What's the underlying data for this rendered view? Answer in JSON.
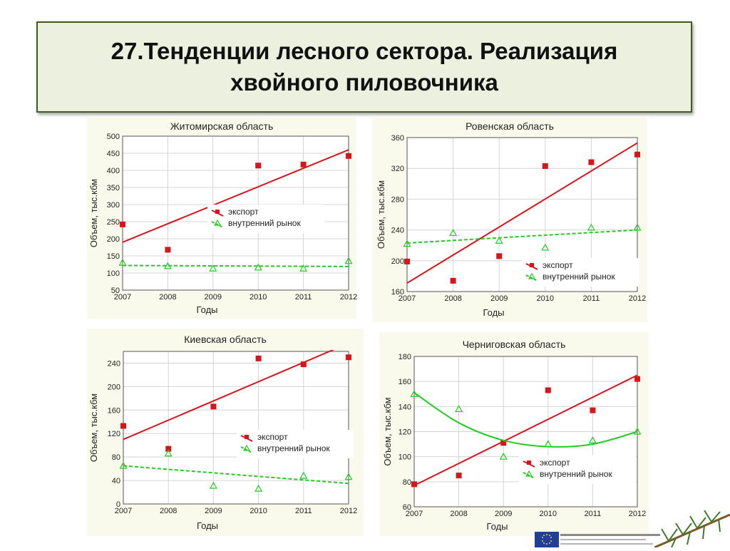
{
  "title": {
    "line1": "27.Тенденции лесного сектора. Реализация",
    "line2": "хвойного пиловочника"
  },
  "colors": {
    "export": "#d9141b",
    "domestic": "#22cc22",
    "title_bg": "#ebf1de",
    "title_border": "#3e5a1f"
  },
  "chart_data": [
    {
      "type": "scatter",
      "title": "Житомирская область",
      "xlabel": "Годы",
      "ylabel": "Объем, тыс.кбм",
      "xlim": [
        2007,
        2012
      ],
      "ylim": [
        50,
        500
      ],
      "yticks": [
        50,
        100,
        150,
        200,
        250,
        300,
        350,
        400,
        450,
        500
      ],
      "xticks": [
        2007,
        2008,
        2009,
        2010,
        2011,
        2012
      ],
      "grid": true,
      "legend_position": "middle-right",
      "series": [
        {
          "name": "экспорт",
          "marker": "square",
          "color": "#d9141b",
          "x": [
            2007,
            2008,
            2009,
            2010,
            2011,
            2012
          ],
          "y": [
            242,
            168,
            272,
            414,
            417,
            442
          ],
          "fit": {
            "kind": "linear",
            "y": [
              190,
              460
            ]
          }
        },
        {
          "name": "внутренний рынок",
          "marker": "triangle",
          "color": "#22cc22",
          "x": [
            2007,
            2008,
            2009,
            2010,
            2011,
            2012
          ],
          "y": [
            130,
            120,
            113,
            116,
            113,
            135
          ],
          "fit": {
            "kind": "linear",
            "y": [
              122,
              119
            ]
          }
        }
      ]
    },
    {
      "type": "scatter",
      "title": "Ровенская область",
      "xlabel": "Годы",
      "ylabel": "Объем, тыс.кбм",
      "xlim": [
        2007,
        2012
      ],
      "ylim": [
        160,
        360
      ],
      "yticks": [
        160,
        200,
        240,
        280,
        320,
        360
      ],
      "xticks": [
        2007,
        2008,
        2009,
        2010,
        2011,
        2012
      ],
      "grid": true,
      "legend_position": "bottom-right",
      "series": [
        {
          "name": "экспорт",
          "marker": "square",
          "color": "#d9141b",
          "x": [
            2007,
            2008,
            2009,
            2010,
            2011,
            2012
          ],
          "y": [
            199,
            174,
            206,
            323,
            328,
            338
          ],
          "fit": {
            "kind": "linear",
            "y": [
              171,
              353
            ]
          }
        },
        {
          "name": "внутренний рынок",
          "marker": "triangle",
          "color": "#22cc22",
          "x": [
            2007,
            2008,
            2009,
            2010,
            2011,
            2012
          ],
          "y": [
            222,
            236,
            226,
            217,
            243,
            243
          ],
          "fit": {
            "kind": "linear",
            "y": [
              223,
              240
            ]
          }
        }
      ]
    },
    {
      "type": "scatter",
      "title": "Киевская область",
      "xlabel": "Годы",
      "ylabel": "Объем, тыс.кбм",
      "xlim": [
        2007,
        2012
      ],
      "ylim": [
        0,
        260
      ],
      "yticks": [
        0,
        40,
        80,
        120,
        160,
        200,
        240
      ],
      "xticks": [
        2007,
        2008,
        2009,
        2010,
        2011,
        2012
      ],
      "grid": true,
      "legend_position": "middle-right",
      "series": [
        {
          "name": "экспорт",
          "marker": "square",
          "color": "#d9141b",
          "x": [
            2007,
            2008,
            2009,
            2010,
            2011,
            2012
          ],
          "y": [
            133,
            94,
            166,
            248,
            238,
            250
          ],
          "fit": {
            "kind": "linear",
            "y": [
              110,
              274
            ]
          }
        },
        {
          "name": "внутренний рынок",
          "marker": "triangle",
          "color": "#22cc22",
          "x": [
            2007,
            2008,
            2009,
            2010,
            2011,
            2012
          ],
          "y": [
            65,
            86,
            31,
            26,
            48,
            46
          ],
          "fit": {
            "kind": "linear",
            "y": [
              65,
              35
            ]
          }
        }
      ]
    },
    {
      "type": "scatter",
      "title": "Черниговская область",
      "xlabel": "Годы",
      "ylabel": "Объем, тыс.кбм",
      "xlim": [
        2007,
        2012
      ],
      "ylim": [
        60,
        180
      ],
      "yticks": [
        60,
        80,
        100,
        120,
        140,
        160,
        180
      ],
      "xticks": [
        2007,
        2008,
        2009,
        2010,
        2011,
        2012
      ],
      "grid": true,
      "legend_position": "bottom-right",
      "series": [
        {
          "name": "экспорт",
          "marker": "square",
          "color": "#d9141b",
          "x": [
            2007,
            2008,
            2009,
            2010,
            2011,
            2012
          ],
          "y": [
            78,
            85,
            111,
            153,
            137,
            162
          ],
          "fit": {
            "kind": "linear",
            "y": [
              77,
              165
            ]
          }
        },
        {
          "name": "внутренний рынок",
          "marker": "triangle",
          "color": "#22cc22",
          "x": [
            2007,
            2008,
            2009,
            2010,
            2011,
            2012
          ],
          "y": [
            150,
            138,
            100,
            110,
            113,
            120
          ],
          "fit": {
            "kind": "quadratic",
            "y": [
              151,
              127,
              113,
              108,
              110,
              120
            ]
          }
        }
      ]
    }
  ]
}
